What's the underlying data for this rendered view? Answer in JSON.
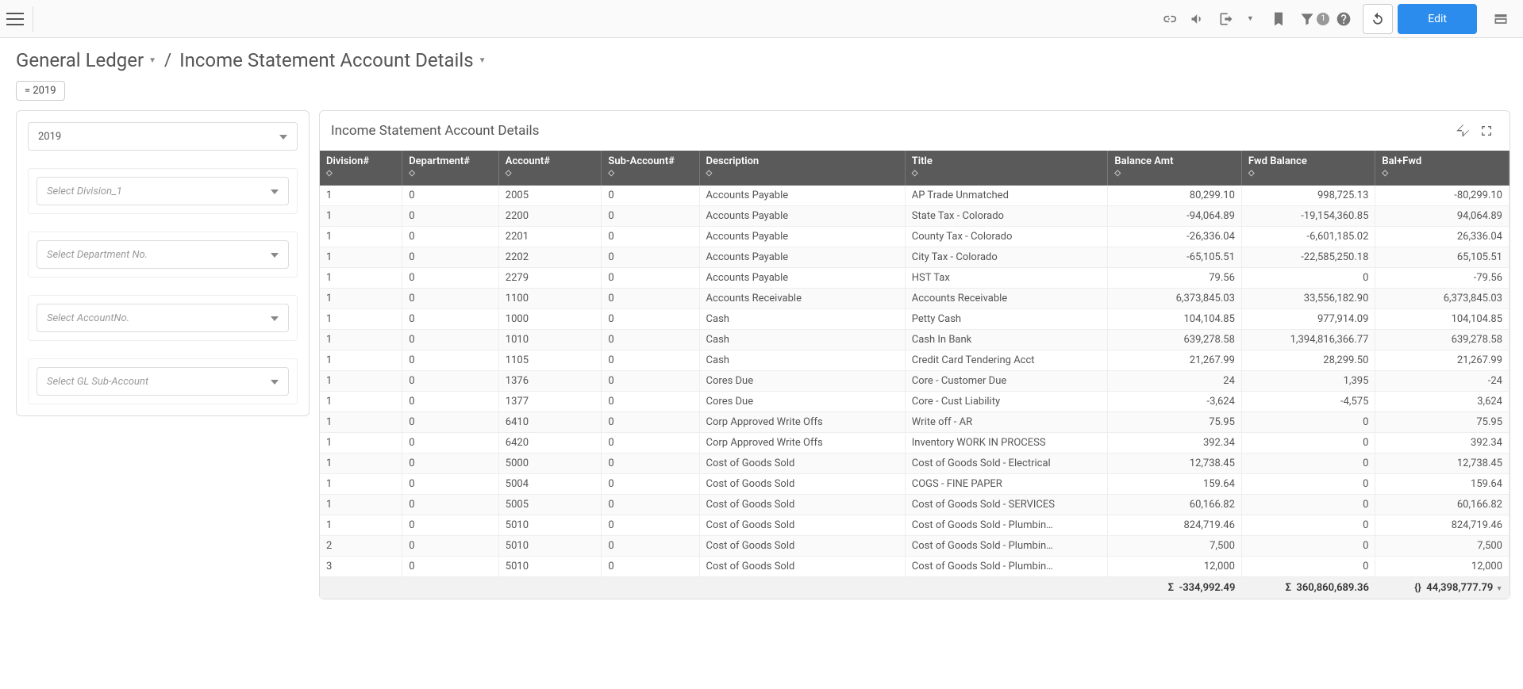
{
  "toolbar": {
    "edit_label": "Edit",
    "filter_count": "1"
  },
  "breadcrumbs": {
    "level1": "General Ledger",
    "level2": "Income Statement Account Details"
  },
  "filter_chip": "= 2019",
  "sidebar": {
    "year_value": "2019",
    "division_placeholder": "Select Division_1",
    "department_placeholder": "Select Department No.",
    "account_placeholder": "Select AccountNo.",
    "subaccount_placeholder": "Select GL Sub-Account"
  },
  "content": {
    "title": "Income Statement Account Details"
  },
  "table": {
    "columns": [
      "Division#",
      "Department#",
      "Account#",
      "Sub-Account#",
      "Description",
      "Title",
      "Balance Amt",
      "Fwd Balance",
      "Bal+Fwd"
    ],
    "rows": [
      [
        "1",
        "0",
        "2005",
        "0",
        "Accounts Payable",
        "AP Trade Unmatched",
        "80,299.10",
        "998,725.13",
        "-80,299.10"
      ],
      [
        "1",
        "0",
        "2200",
        "0",
        "Accounts Payable",
        "State Tax - Colorado",
        "-94,064.89",
        "-19,154,360.85",
        "94,064.89"
      ],
      [
        "1",
        "0",
        "2201",
        "0",
        "Accounts Payable",
        "County Tax - Colorado",
        "-26,336.04",
        "-6,601,185.02",
        "26,336.04"
      ],
      [
        "1",
        "0",
        "2202",
        "0",
        "Accounts Payable",
        "City Tax - Colorado",
        "-65,105.51",
        "-22,585,250.18",
        "65,105.51"
      ],
      [
        "1",
        "0",
        "2279",
        "0",
        "Accounts Payable",
        "HST Tax",
        "79.56",
        "0",
        "-79.56"
      ],
      [
        "1",
        "0",
        "1100",
        "0",
        "Accounts Receivable",
        "Accounts Receivable",
        "6,373,845.03",
        "33,556,182.90",
        "6,373,845.03"
      ],
      [
        "1",
        "0",
        "1000",
        "0",
        "Cash",
        "Petty Cash",
        "104,104.85",
        "977,914.09",
        "104,104.85"
      ],
      [
        "1",
        "0",
        "1010",
        "0",
        "Cash",
        "Cash In Bank",
        "639,278.58",
        "1,394,816,366.77",
        "639,278.58"
      ],
      [
        "1",
        "0",
        "1105",
        "0",
        "Cash",
        "Credit Card Tendering Acct",
        "21,267.99",
        "28,299.50",
        "21,267.99"
      ],
      [
        "1",
        "0",
        "1376",
        "0",
        "Cores Due",
        "Core - Customer Due",
        "24",
        "1,395",
        "-24"
      ],
      [
        "1",
        "0",
        "1377",
        "0",
        "Cores Due",
        "Core - Cust Liability",
        "-3,624",
        "-4,575",
        "3,624"
      ],
      [
        "1",
        "0",
        "6410",
        "0",
        "Corp Approved Write Offs",
        "Write off - AR",
        "75.95",
        "0",
        "75.95"
      ],
      [
        "1",
        "0",
        "6420",
        "0",
        "Corp Approved Write Offs",
        "Inventory WORK IN PROCESS",
        "392.34",
        "0",
        "392.34"
      ],
      [
        "1",
        "0",
        "5000",
        "0",
        "Cost of Goods Sold",
        "Cost of Goods Sold - Electrical",
        "12,738.45",
        "0",
        "12,738.45"
      ],
      [
        "1",
        "0",
        "5004",
        "0",
        "Cost of Goods Sold",
        "COGS - FINE PAPER",
        "159.64",
        "0",
        "159.64"
      ],
      [
        "1",
        "0",
        "5005",
        "0",
        "Cost of Goods Sold",
        "Cost of Goods Sold - SERVICES",
        "60,166.82",
        "0",
        "60,166.82"
      ],
      [
        "1",
        "0",
        "5010",
        "0",
        "Cost of Goods Sold",
        "Cost of Goods Sold - Plumbin…",
        "824,719.46",
        "0",
        "824,719.46"
      ],
      [
        "2",
        "0",
        "5010",
        "0",
        "Cost of Goods Sold",
        "Cost of Goods Sold - Plumbin…",
        "7,500",
        "0",
        "7,500"
      ],
      [
        "3",
        "0",
        "5010",
        "0",
        "Cost of Goods Sold",
        "Cost of Goods Sold - Plumbin…",
        "12,000",
        "0",
        "12,000"
      ]
    ],
    "footer": {
      "bal_sigma": "Σ",
      "bal_total": "-334,992.49",
      "fwd_sigma": "Σ",
      "fwd_total": "360,860,689.36",
      "bfw_sigma": "{}",
      "bfw_total": "44,398,777.79"
    }
  }
}
